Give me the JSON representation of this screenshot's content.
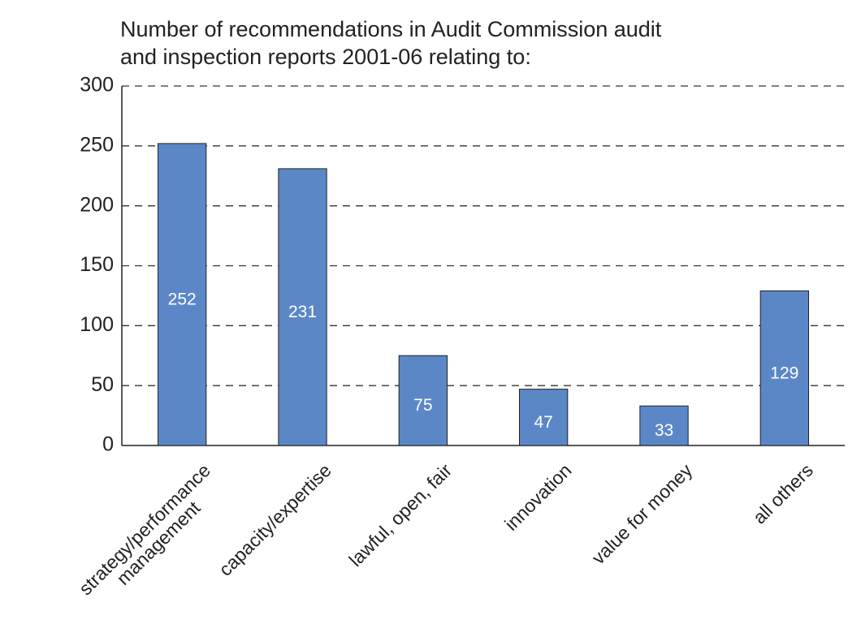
{
  "chart_data": {
    "type": "bar",
    "title": [
      "Number of recommendations in Audit Commission audit",
      "and inspection reports 2001-06 relating to:"
    ],
    "categories": [
      "strategy/performance\nmanagement",
      "capacity/expertise",
      "lawful, open, fair",
      "innovation",
      "value for money",
      "all others"
    ],
    "values": [
      252,
      231,
      75,
      47,
      33,
      129
    ],
    "color": "#5b87c7",
    "ylim": [
      0,
      300
    ],
    "yticks": [
      0,
      50,
      100,
      150,
      200,
      250,
      300
    ],
    "grid": true
  }
}
